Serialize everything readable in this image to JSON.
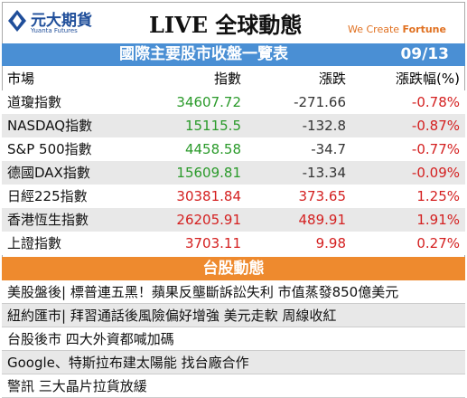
{
  "header": {
    "logo": "元大期貨",
    "logo_sub": "Yuanta Futures",
    "title": "LIVE 全球動態",
    "slogan_prefix": "We Create ",
    "slogan_bold": "Fortune"
  },
  "table": {
    "title": "國際主要股市收盤一覽表",
    "date": "09/13",
    "columns": [
      "市場",
      "指數",
      "漲跌",
      "漲跌幅(%)"
    ],
    "rows": [
      [
        "道瓊指數",
        "34607.72",
        "-271.66",
        "-0.78%"
      ],
      [
        "NASDAQ指數",
        "15115.5",
        "-132.8",
        "-0.87%"
      ],
      [
        "S&P 500指數",
        "4458.58",
        "-34.7",
        "-0.77%"
      ],
      [
        "德國DAX指數",
        "15609.81",
        "-13.34",
        "-0.09%"
      ],
      [
        "日經225指數",
        "30381.84",
        "373.65",
        "1.25%"
      ],
      [
        "香港恆生指數",
        "26205.91",
        "489.91",
        "1.91%"
      ],
      [
        "上證指數",
        "3703.11",
        "9.98",
        "0.27%"
      ]
    ]
  },
  "news": {
    "title": "台股動態",
    "items": [
      "美股盤後| 標普連五黑！蘋果反壟斷訴訟失利 市值蒸發850億美元",
      "紐約匯市| 拜習通話後風險偏好增強 美元走軟 周線收紅",
      "台股後市 四大外資都喊加碼",
      "Google、特斯拉布建太陽能 找台廠合作",
      "警訊 三大晶片拉貨放緩"
    ]
  }
}
